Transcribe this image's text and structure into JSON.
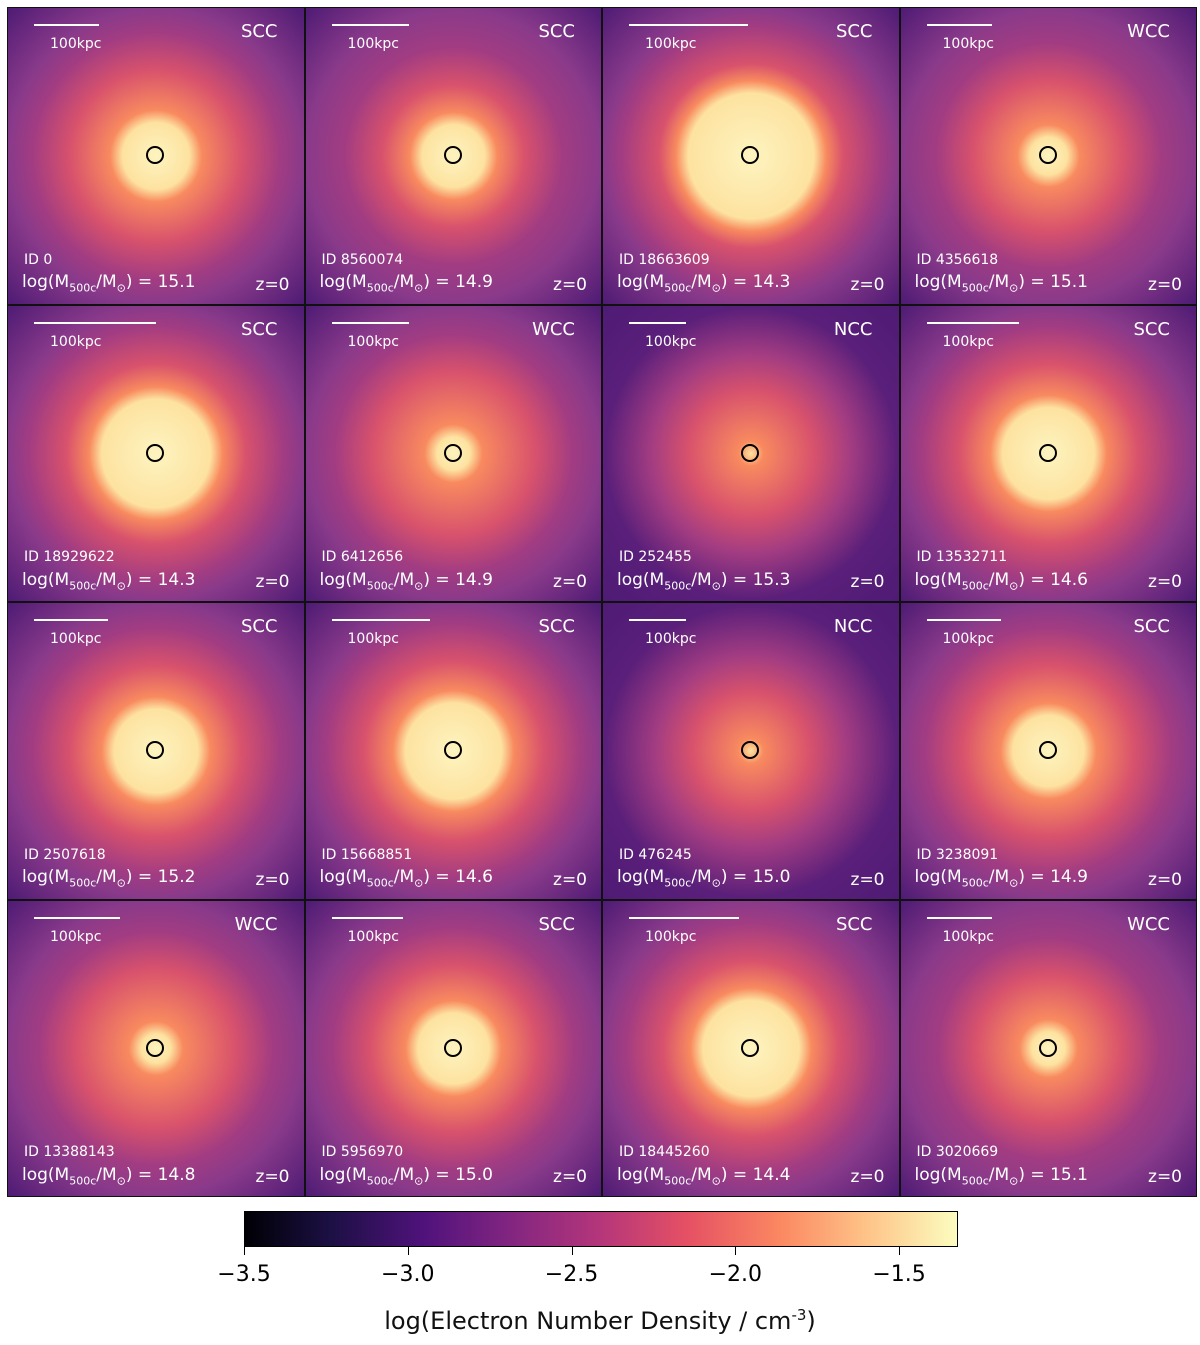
{
  "panels": [
    {
      "class": "SCC",
      "id": "ID 0",
      "mass": "15.1",
      "z": "z=0",
      "scale": "100kpc",
      "bar_fraction": 0.22,
      "brightness": 0.85,
      "core": 0.16
    },
    {
      "class": "SCC",
      "id": "ID 8560074",
      "mass": "14.9",
      "z": "z=0",
      "scale": "100kpc",
      "bar_fraction": 0.26,
      "brightness": 0.55,
      "core": 0.15
    },
    {
      "class": "SCC",
      "id": "ID 18663609",
      "mass": "14.3",
      "z": "z=0",
      "scale": "100kpc",
      "bar_fraction": 0.4,
      "brightness": 0.95,
      "core": 0.3
    },
    {
      "class": "WCC",
      "id": "ID 4356618",
      "mass": "15.1",
      "z": "z=0",
      "scale": "100kpc",
      "bar_fraction": 0.22,
      "brightness": 0.65,
      "core": 0.09
    },
    {
      "class": "SCC",
      "id": "ID 18929622",
      "mass": "14.3",
      "z": "z=0",
      "scale": "100kpc",
      "bar_fraction": 0.41,
      "brightness": 0.92,
      "core": 0.26
    },
    {
      "class": "WCC",
      "id": "ID 6412656",
      "mass": "14.9",
      "z": "z=0",
      "scale": "100kpc",
      "bar_fraction": 0.26,
      "brightness": 0.75,
      "core": 0.08
    },
    {
      "class": "NCC",
      "id": "ID 252455",
      "mass": "15.3",
      "z": "z=0",
      "scale": "100kpc",
      "bar_fraction": 0.19,
      "brightness": 0.4,
      "core": 0.0
    },
    {
      "class": "SCC",
      "id": "ID 13532711",
      "mass": "14.6",
      "z": "z=0",
      "scale": "100kpc",
      "bar_fraction": 0.31,
      "brightness": 0.9,
      "core": 0.22
    },
    {
      "class": "SCC",
      "id": "ID 2507618",
      "mass": "15.2",
      "z": "z=0",
      "scale": "100kpc",
      "bar_fraction": 0.25,
      "brightness": 0.85,
      "core": 0.2
    },
    {
      "class": "SCC",
      "id": "ID 15668851",
      "mass": "14.6",
      "z": "z=0",
      "scale": "100kpc",
      "bar_fraction": 0.33,
      "brightness": 0.9,
      "core": 0.23
    },
    {
      "class": "NCC",
      "id": "ID 476245",
      "mass": "15.0",
      "z": "z=0",
      "scale": "100kpc",
      "bar_fraction": 0.19,
      "brightness": 0.3,
      "core": 0.0
    },
    {
      "class": "SCC",
      "id": "ID 3238091",
      "mass": "14.9",
      "z": "z=0",
      "scale": "100kpc",
      "bar_fraction": 0.25,
      "brightness": 0.85,
      "core": 0.17
    },
    {
      "class": "WCC",
      "id": "ID 13388143",
      "mass": "14.8",
      "z": "z=0",
      "scale": "100kpc",
      "bar_fraction": 0.29,
      "brightness": 0.72,
      "core": 0.07
    },
    {
      "class": "SCC",
      "id": "ID 5956970",
      "mass": "15.0",
      "z": "z=0",
      "scale": "100kpc",
      "bar_fraction": 0.24,
      "brightness": 0.8,
      "core": 0.17
    },
    {
      "class": "SCC",
      "id": "ID 18445260",
      "mass": "14.4",
      "z": "z=0",
      "scale": "100kpc",
      "bar_fraction": 0.37,
      "brightness": 0.88,
      "core": 0.23
    },
    {
      "class": "WCC",
      "id": "ID 3020669",
      "mass": "15.1",
      "z": "z=0",
      "scale": "100kpc",
      "bar_fraction": 0.22,
      "brightness": 0.6,
      "core": 0.08
    }
  ],
  "mass_label": {
    "prefix": "log(M",
    "sub": "500c",
    "mid": "/M",
    "sun_sub": "⊙",
    "suffix": ") = "
  },
  "colorbar": {
    "ticks": [
      "−3.5",
      "−3.0",
      "−2.5",
      "−2.0",
      "−1.5"
    ],
    "tick_values": [
      -3.5,
      -3.0,
      -2.5,
      -2.0,
      -1.5
    ],
    "range": [
      -3.5,
      -1.32
    ],
    "label_main": "log(Electron Number Density / cm",
    "label_sup": "-3",
    "label_end": ")",
    "colormap": "magma"
  }
}
